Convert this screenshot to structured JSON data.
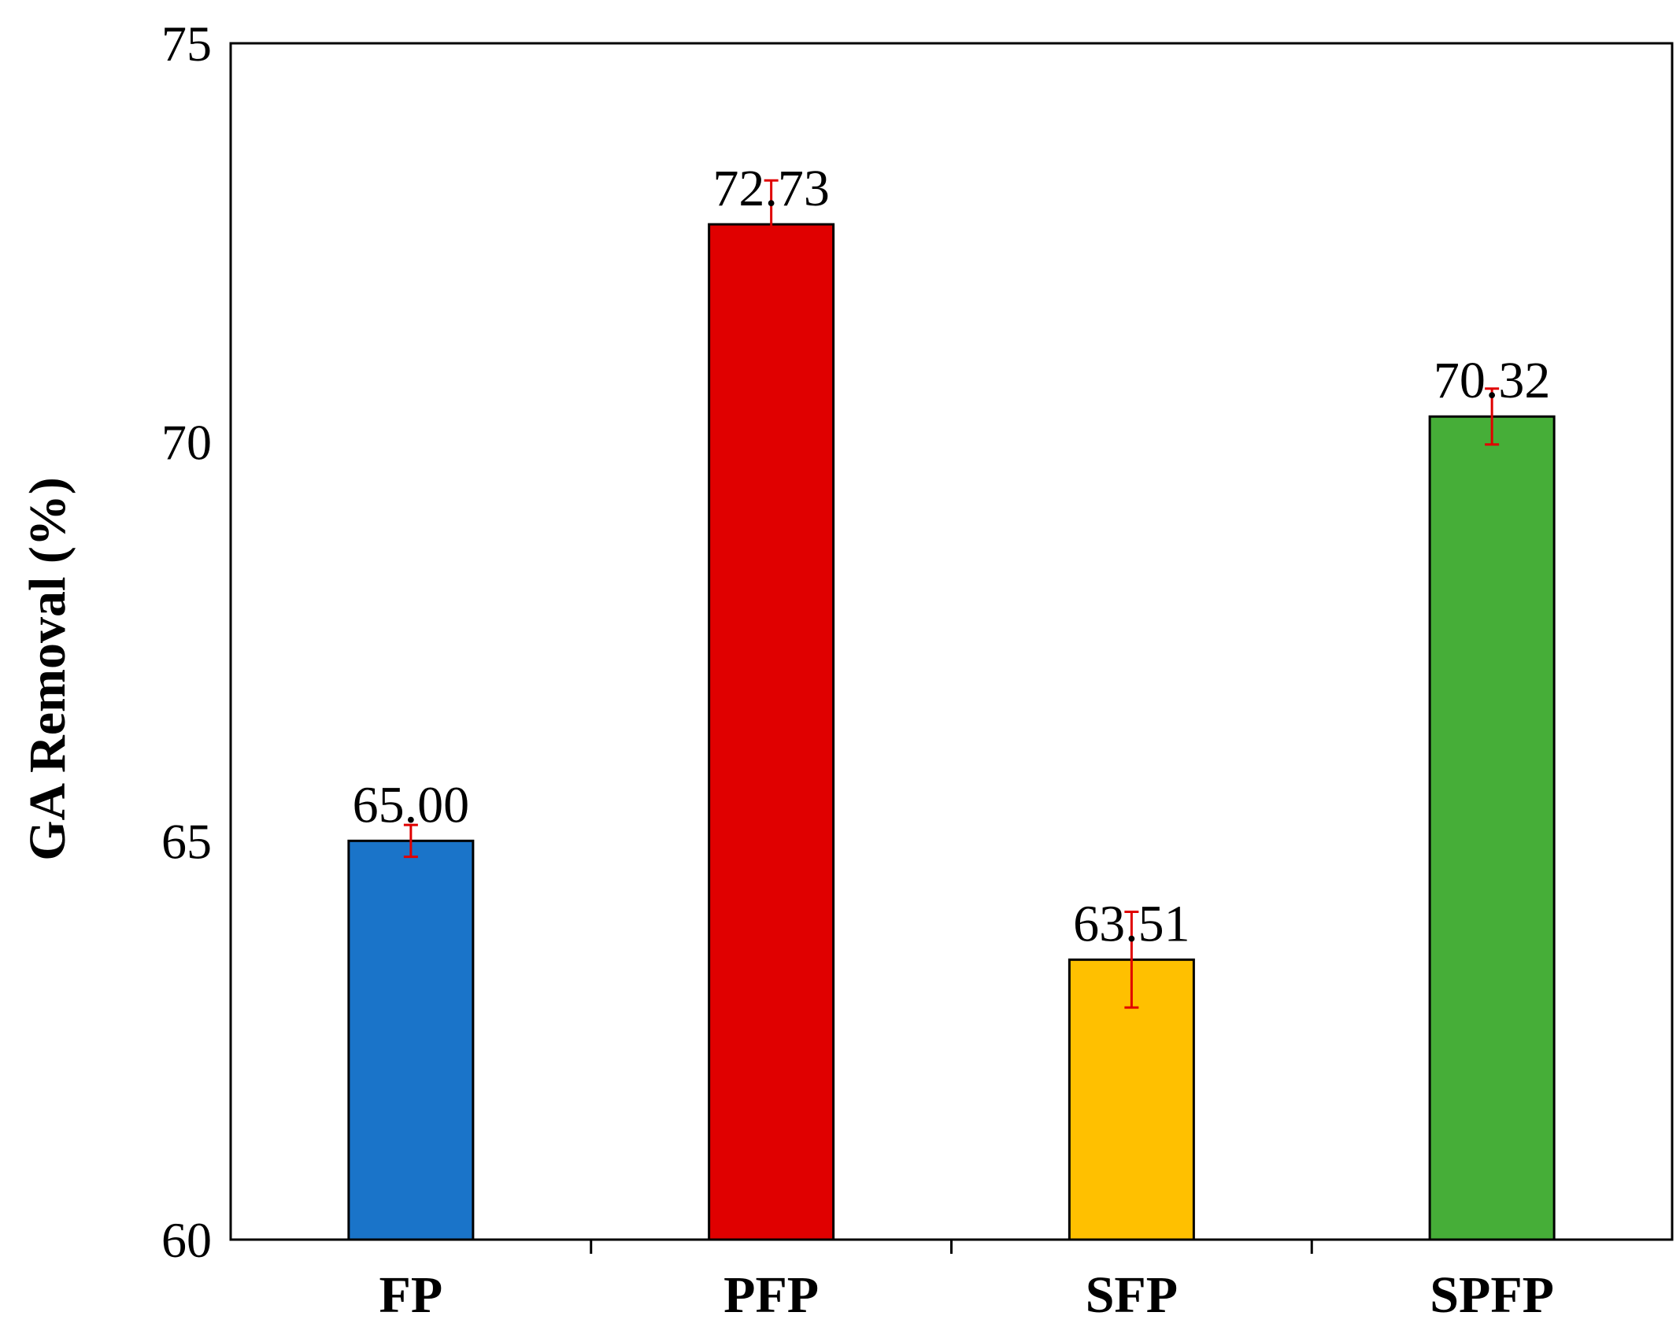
{
  "chart_data": {
    "type": "bar",
    "categories": [
      "FP",
      "PFP",
      "SFP",
      "SPFP"
    ],
    "values": [
      65.0,
      72.73,
      63.51,
      70.32
    ],
    "value_labels": [
      "65.00",
      "72.73",
      "63.51",
      "70.32"
    ],
    "errors": [
      0.2,
      0.55,
      0.6,
      0.35
    ],
    "colors": [
      "#1A74C9",
      "#E00000",
      "#FFC000",
      "#46AE38"
    ],
    "error_color": "#E00000",
    "ylabel": "GA Removal (%)",
    "ylim": [
      60,
      75
    ],
    "yticks": [
      60,
      65,
      70,
      75
    ],
    "grid": false,
    "legend": "none"
  }
}
